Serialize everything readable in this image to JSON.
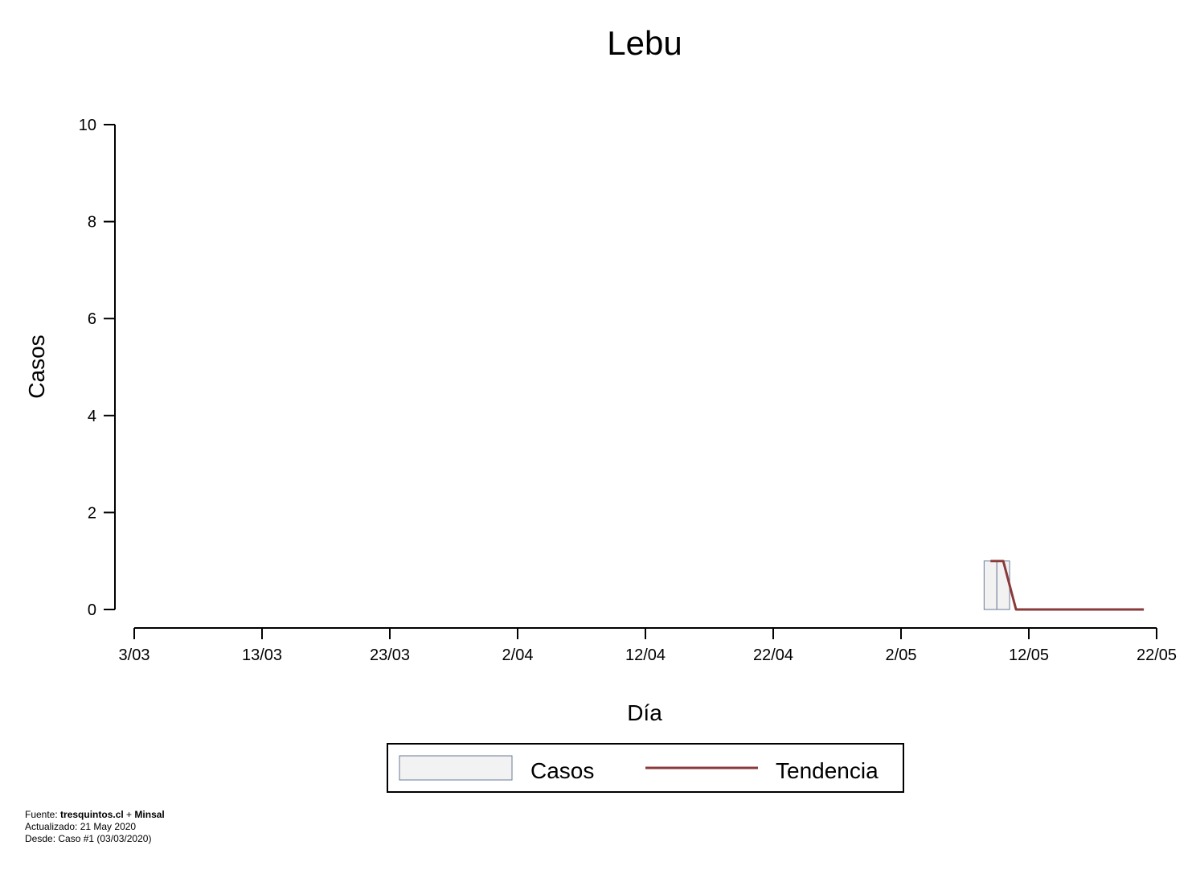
{
  "chart_data": {
    "type": "bar",
    "title": "Lebu",
    "xlabel": "Día",
    "ylabel": "Casos",
    "ylim": [
      0,
      10
    ],
    "yticks": [
      "0",
      "2",
      "4",
      "6",
      "8",
      "10"
    ],
    "xlim": [
      "2020-03-03",
      "2020-05-22"
    ],
    "xtick_labels": [
      "3/03",
      "13/03",
      "23/03",
      "2/04",
      "12/04",
      "22/04",
      "2/05",
      "12/05",
      "22/05"
    ],
    "grid": false,
    "legend_position": "bottom",
    "series": [
      {
        "name": "Casos",
        "type": "bar",
        "color": "#f2f2f2",
        "edge_color": "#6a7a9a",
        "x": [
          "2020-05-09",
          "2020-05-10"
        ],
        "values": [
          1,
          1
        ]
      },
      {
        "name": "Tendencia",
        "type": "line",
        "color": "#8b3a3a",
        "x": [
          "2020-05-09",
          "2020-05-10",
          "2020-05-11",
          "2020-05-12",
          "2020-05-13",
          "2020-05-14",
          "2020-05-15",
          "2020-05-16",
          "2020-05-17",
          "2020-05-18",
          "2020-05-19",
          "2020-05-20",
          "2020-05-21"
        ],
        "values": [
          1,
          1,
          0,
          0,
          0,
          0,
          0,
          0,
          0,
          0,
          0,
          0,
          0
        ]
      }
    ]
  },
  "footer": {
    "source_prefix": "Fuente: ",
    "source_site": "tresquintos.cl",
    "source_sep": " + ",
    "source_org": "Minsal",
    "updated": "Actualizado: 21 May 2020",
    "since": "Desde: Caso #1  (03/03/2020)"
  }
}
